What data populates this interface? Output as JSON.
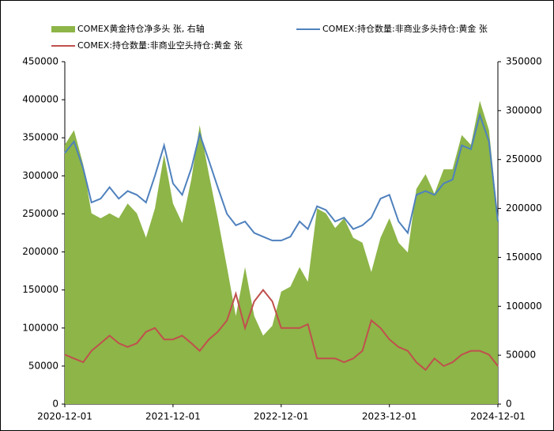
{
  "chart_data": {
    "type": "area-line",
    "x": [
      "2020-12-01",
      "2021-01-01",
      "2021-02-01",
      "2021-03-01",
      "2021-04-01",
      "2021-05-01",
      "2021-06-01",
      "2021-07-01",
      "2021-08-01",
      "2021-09-01",
      "2021-10-01",
      "2021-11-01",
      "2021-12-01",
      "2022-01-01",
      "2022-02-01",
      "2022-03-01",
      "2022-04-01",
      "2022-05-01",
      "2022-06-01",
      "2022-07-01",
      "2022-08-01",
      "2022-09-01",
      "2022-10-01",
      "2022-11-01",
      "2022-12-01",
      "2023-01-01",
      "2023-02-01",
      "2023-03-01",
      "2023-04-01",
      "2023-05-01",
      "2023-06-01",
      "2023-07-01",
      "2023-08-01",
      "2023-09-01",
      "2023-10-01",
      "2023-11-01",
      "2023-12-01",
      "2024-01-01",
      "2024-02-01",
      "2024-03-01",
      "2024-04-01",
      "2024-05-01",
      "2024-06-01",
      "2024-07-01",
      "2024-08-01",
      "2024-09-01",
      "2024-10-01",
      "2024-11-01",
      "2024-12-01"
    ],
    "series": [
      {
        "name": "COMEX黄金持仓净多头 张, 右轴",
        "color": "#8db548",
        "kind": "area",
        "axis": "y2",
        "values": [
          265000,
          280000,
          245000,
          195000,
          190000,
          195000,
          190000,
          205000,
          195000,
          170000,
          200000,
          255000,
          205000,
          185000,
          230000,
          285000,
          235000,
          190000,
          140000,
          90000,
          140000,
          90000,
          70000,
          80000,
          115000,
          120000,
          140000,
          125000,
          200000,
          195000,
          180000,
          190000,
          170000,
          165000,
          135000,
          170000,
          190000,
          165000,
          155000,
          220000,
          235000,
          215000,
          240000,
          240000,
          275000,
          265000,
          310000,
          280000,
          190000
        ]
      },
      {
        "name": "COMEX:持仓数量:非商业多头持仓:黄金 张",
        "color": "#4f81bd",
        "kind": "line",
        "values": [
          330000,
          345000,
          310000,
          265000,
          270000,
          285000,
          270000,
          280000,
          275000,
          265000,
          300000,
          340000,
          290000,
          275000,
          310000,
          355000,
          320000,
          285000,
          250000,
          235000,
          240000,
          225000,
          220000,
          215000,
          215000,
          220000,
          240000,
          230000,
          260000,
          255000,
          240000,
          245000,
          230000,
          235000,
          245000,
          270000,
          275000,
          240000,
          225000,
          275000,
          280000,
          275000,
          290000,
          295000,
          340000,
          335000,
          380000,
          345000,
          240000
        ]
      },
      {
        "name": "COMEX:持仓数量:非商业空头持仓:黄金 张",
        "color": "#c0504d",
        "kind": "line",
        "values": [
          65000,
          60000,
          55000,
          70000,
          80000,
          90000,
          80000,
          75000,
          80000,
          95000,
          100000,
          85000,
          85000,
          90000,
          80000,
          70000,
          85000,
          95000,
          110000,
          145000,
          100000,
          135000,
          150000,
          135000,
          100000,
          100000,
          100000,
          105000,
          60000,
          60000,
          60000,
          55000,
          60000,
          70000,
          110000,
          100000,
          85000,
          75000,
          70000,
          55000,
          45000,
          60000,
          50000,
          55000,
          65000,
          70000,
          70000,
          65000,
          50000
        ]
      }
    ],
    "xlim": [
      "2020-12-01",
      "2024-12-01"
    ],
    "xticks": [
      "2020-12-01",
      "2021-12-01",
      "2022-12-01",
      "2023-12-01",
      "2024-12-01"
    ],
    "ylim": [
      0,
      450000
    ],
    "yticks": [
      0,
      50000,
      100000,
      150000,
      200000,
      250000,
      300000,
      350000,
      400000,
      450000
    ],
    "y2lim": [
      0,
      350000
    ],
    "y2ticks": [
      0,
      50000,
      100000,
      150000,
      200000,
      250000,
      300000,
      350000
    ],
    "legend": "top"
  }
}
